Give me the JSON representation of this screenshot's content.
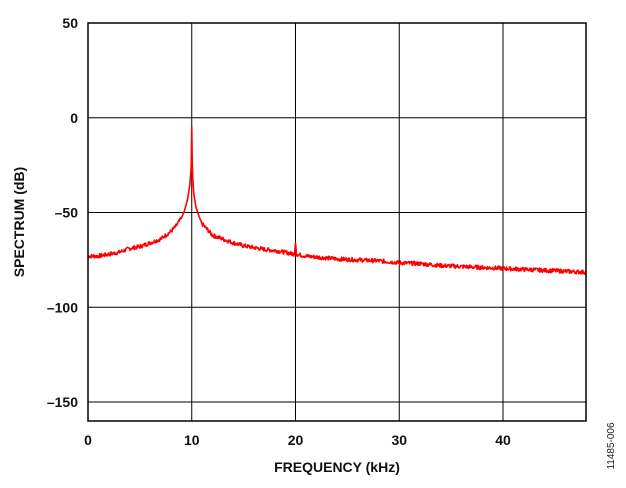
{
  "figure_id": "11485-006",
  "chart_data": {
    "type": "line",
    "title": "",
    "xlabel": "FREQUENCY (kHz)",
    "ylabel": "SPECTRUM (dB)",
    "xlim": [
      0,
      48
    ],
    "ylim": [
      -160,
      50
    ],
    "xticks": [
      0,
      10,
      20,
      30,
      40
    ],
    "xtick_labels": [
      "0",
      "10",
      "20",
      "30",
      "40"
    ],
    "yticks": [
      50,
      0,
      -50,
      -100,
      -150
    ],
    "ytick_labels": [
      "50",
      "0",
      "–50",
      "–100",
      "–150"
    ],
    "grid": true,
    "series": [
      {
        "name": "spectrum",
        "color": "#ff0000",
        "x": [
          0,
          1,
          2,
          3,
          4,
          5,
          6,
          7,
          7.5,
          8,
          8.5,
          9,
          9.3,
          9.6,
          9.8,
          9.9,
          9.95,
          10,
          10.05,
          10.1,
          10.2,
          10.4,
          10.7,
          11,
          11.5,
          12,
          13,
          14,
          15,
          16,
          17,
          18,
          19,
          19.9,
          20,
          20.1,
          21,
          22,
          24,
          26,
          28,
          30,
          32,
          34,
          36,
          38,
          40,
          42,
          44,
          46,
          48
        ],
        "values": [
          -73,
          -73,
          -72,
          -71,
          -69,
          -68,
          -66,
          -64,
          -62,
          -60,
          -57,
          -53,
          -49,
          -43,
          -36,
          -30,
          -25,
          -5,
          -25,
          -32,
          -40,
          -47,
          -52,
          -56,
          -59,
          -62,
          -64,
          -66,
          -67.5,
          -68.5,
          -69.5,
          -70,
          -71,
          -72,
          -66,
          -72,
          -73,
          -73.5,
          -74.5,
          -75,
          -75.5,
          -76.5,
          -77,
          -78,
          -78.5,
          -79,
          -79.5,
          -80,
          -80.5,
          -81,
          -81.5
        ]
      }
    ]
  }
}
